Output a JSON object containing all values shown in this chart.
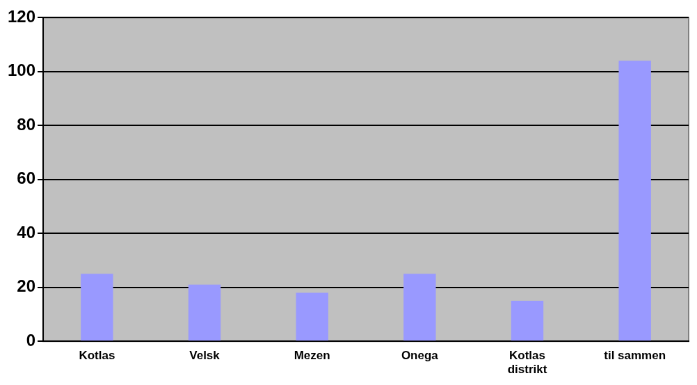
{
  "chart_data": {
    "type": "bar",
    "categories": [
      "Kotlas",
      "Velsk",
      "Mezen",
      "Onega",
      "Kotlas distrikt",
      "til sammen"
    ],
    "values": [
      25,
      21,
      18,
      25,
      15,
      104
    ],
    "color": "#9999ff",
    "ylim": [
      0,
      120
    ],
    "yticks": [
      0,
      20,
      40,
      60,
      80,
      100,
      120
    ],
    "grid": "y",
    "legend": false
  }
}
